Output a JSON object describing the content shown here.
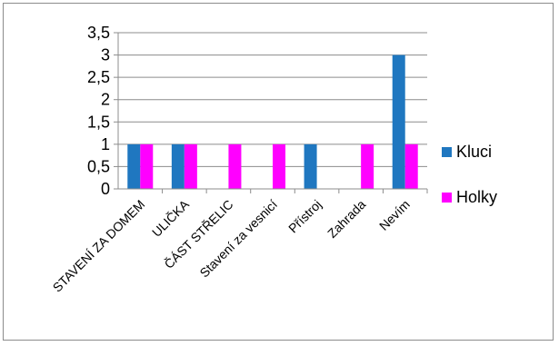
{
  "chart_data": {
    "type": "bar",
    "title": "",
    "xlabel": "",
    "ylabel": "",
    "categories": [
      "STAVENÍ ZA DOMEM",
      "ULIČKA",
      "ČÁST STŘELIC",
      "Stavení za vesnicí",
      "Přístroj",
      "Zahrada",
      "Nevím"
    ],
    "series": [
      {
        "name": "Kluci",
        "color": "#1F77C0",
        "values": [
          1,
          1,
          0,
          0,
          1,
          0,
          3
        ]
      },
      {
        "name": "Holky",
        "color": "#FF00FF",
        "values": [
          1,
          1,
          1,
          1,
          0,
          1,
          1
        ]
      }
    ],
    "ylim": [
      0,
      3.5
    ],
    "yticks": [
      "0",
      "0,5",
      "1",
      "1,5",
      "2",
      "2,5",
      "3",
      "3,5"
    ],
    "grid": true,
    "legend": "right"
  }
}
